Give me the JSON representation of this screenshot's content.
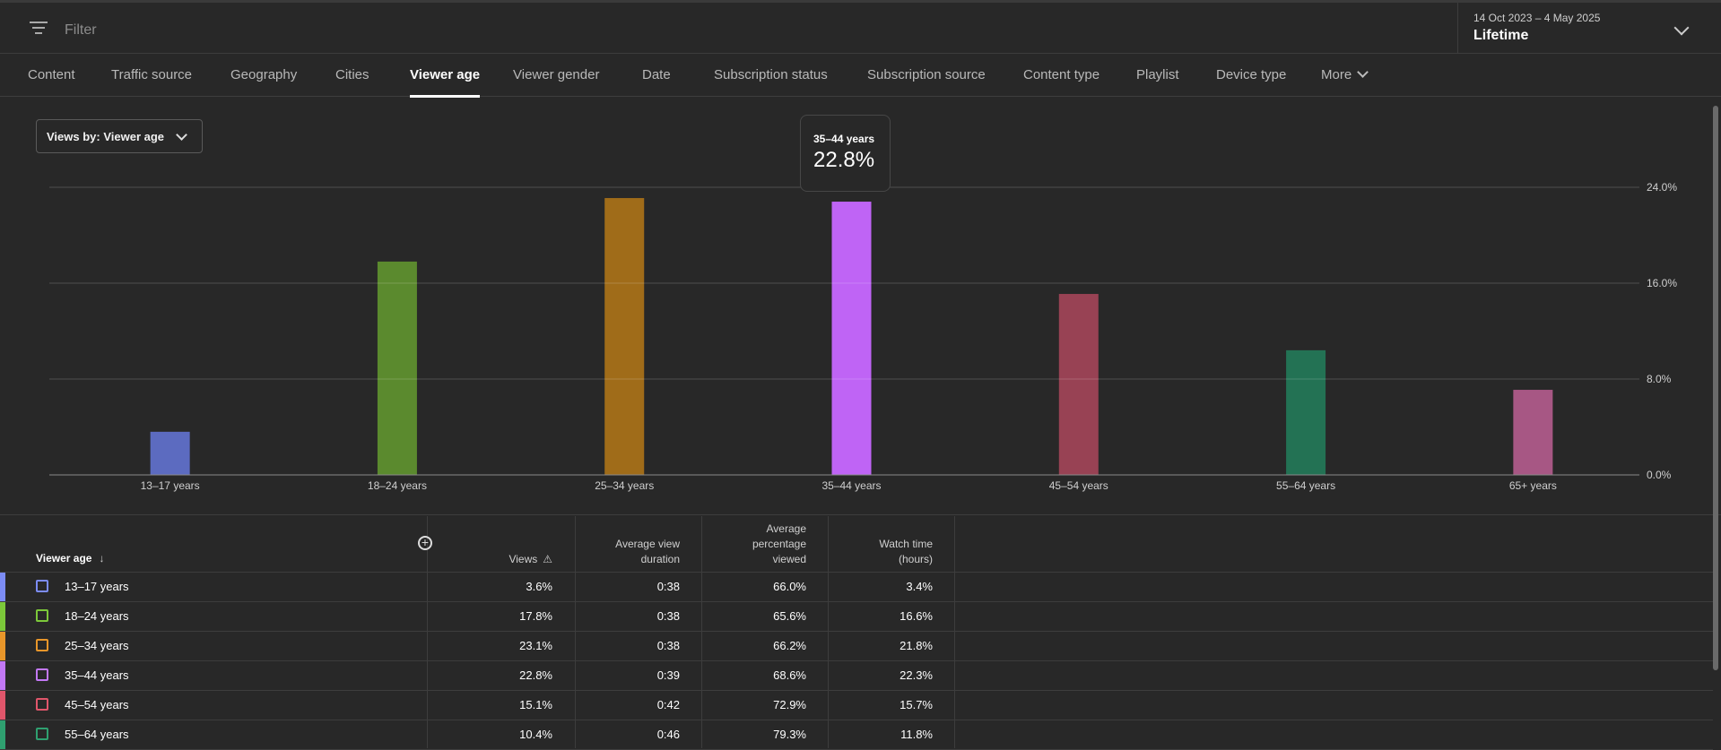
{
  "topbar": {
    "filter_placeholder": "Filter",
    "date_range": "14 Oct 2023 – 4 May 2025",
    "date_label": "Lifetime"
  },
  "tabs": [
    {
      "label": "Content"
    },
    {
      "label": "Traffic source"
    },
    {
      "label": "Geography"
    },
    {
      "label": "Cities"
    },
    {
      "label": "Viewer age",
      "active": true
    },
    {
      "label": "Viewer gender"
    },
    {
      "label": "Date"
    },
    {
      "label": "Subscription status"
    },
    {
      "label": "Subscription source"
    },
    {
      "label": "Content type"
    },
    {
      "label": "Playlist"
    },
    {
      "label": "Device type"
    },
    {
      "label": "More"
    }
  ],
  "chart_controls": {
    "views_by": "Views by: Viewer age"
  },
  "tooltip": {
    "title": "35–44 years",
    "value": "22.8%"
  },
  "chart_data": {
    "type": "bar",
    "categories": [
      "13–17 years",
      "18–24 years",
      "25–34 years",
      "35–44 years",
      "45–54 years",
      "55–64 years",
      "65+ years"
    ],
    "values": [
      3.6,
      17.8,
      23.1,
      22.8,
      15.1,
      10.4,
      7.1
    ],
    "colors": [
      "#5c6bc0",
      "#5b8a2e",
      "#a06c19",
      "#bf64f5",
      "#984254",
      "#237254",
      "#a75784"
    ],
    "ylim": [
      0,
      24
    ],
    "yticks": [
      "0.0%",
      "8.0%",
      "16.0%",
      "24.0%"
    ],
    "ytick_values": [
      0,
      8,
      16,
      24
    ],
    "grid": true
  },
  "table": {
    "headers": {
      "age": "Viewer age",
      "views": "Views",
      "avg_duration": [
        "Average view",
        "duration"
      ],
      "avg_percentage": [
        "Average",
        "percentage",
        "viewed"
      ],
      "watch_time": [
        "Watch time",
        "(hours)"
      ]
    },
    "rows": [
      {
        "age": "13–17 years",
        "views": "3.6%",
        "duration": "0:38",
        "percentage": "66.0%",
        "watch": "3.4%",
        "color": "#7c8cf5"
      },
      {
        "age": "18–24 years",
        "views": "17.8%",
        "duration": "0:38",
        "percentage": "65.6%",
        "watch": "16.6%",
        "color": "#7cc83a"
      },
      {
        "age": "25–34 years",
        "views": "23.1%",
        "duration": "0:38",
        "percentage": "66.2%",
        "watch": "21.8%",
        "color": "#e8962a"
      },
      {
        "age": "35–44 years",
        "views": "22.8%",
        "duration": "0:39",
        "percentage": "68.6%",
        "watch": "22.3%",
        "color": "#c278f5"
      },
      {
        "age": "45–54 years",
        "views": "15.1%",
        "duration": "0:42",
        "percentage": "72.9%",
        "watch": "15.7%",
        "color": "#e0566b"
      },
      {
        "age": "55–64 years",
        "views": "10.4%",
        "duration": "0:46",
        "percentage": "79.3%",
        "watch": "11.8%",
        "color": "#2fa070"
      }
    ]
  }
}
